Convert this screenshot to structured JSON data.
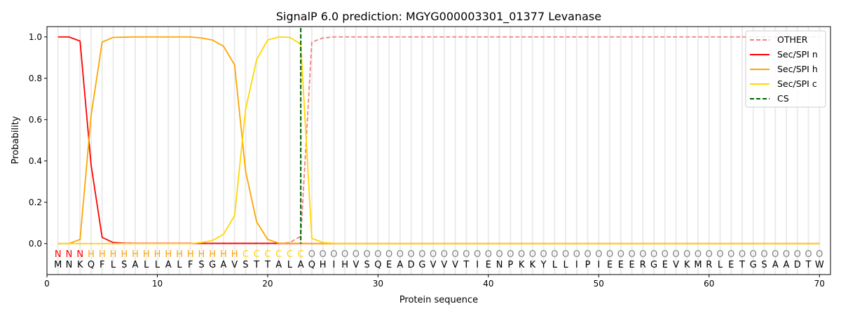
{
  "chart_data": {
    "type": "line",
    "title": "SignalP 6.0 prediction: MGYG000003301_01377 Levanase",
    "xlabel": "Protein sequence",
    "ylabel": "Probability",
    "xlim": [
      0,
      71
    ],
    "ylim": [
      -0.15,
      1.05
    ],
    "xticks": [
      0,
      10,
      20,
      30,
      40,
      50,
      60,
      70
    ],
    "yticks": [
      "0.0",
      "0.2",
      "0.4",
      "0.6",
      "0.8",
      "1.0"
    ],
    "grid": "vertical lines at each residue",
    "legend_position": "top-right",
    "sequence": "MNKQFLSALLALFSGAVSTTALAQHIHVSQEADGVVVTIENPKKYLLIPIEEERGEVKMRLETGSAADTW",
    "labels": "NNNHHHHHHHHHHHHHHCCCCCCOOOOOOOOOOOOOOOOOOOOOOOOOOOOOOOOOOOOOOOOOOOOOOO",
    "label_colors": {
      "N": "#ff0000",
      "H": "#ffa500",
      "C": "#ffd700",
      "O": "#808080"
    },
    "cleavage_site": 23,
    "series": [
      {
        "name": "OTHER",
        "color": "#f08080",
        "dash": true,
        "values": [
          0,
          0,
          0,
          0,
          0,
          0,
          0,
          0,
          0,
          0,
          0,
          0,
          0,
          0,
          0,
          0,
          0,
          0,
          0,
          0,
          0,
          0.005,
          0.035,
          0.975,
          0.995,
          1,
          1,
          1,
          1,
          1,
          1,
          1,
          1,
          1,
          1,
          1,
          1,
          1,
          1,
          1,
          1,
          1,
          1,
          1,
          1,
          1,
          1,
          1,
          1,
          1,
          1,
          1,
          1,
          1,
          1,
          1,
          1,
          1,
          1,
          1,
          1,
          1,
          1,
          1,
          1,
          1,
          1,
          1,
          1,
          1
        ]
      },
      {
        "name": "Sec/SPI n",
        "color": "#ff0000",
        "values": [
          1,
          1,
          0.98,
          0.38,
          0.03,
          0.005,
          0.002,
          0.001,
          0.001,
          0.001,
          0.001,
          0.001,
          0.001,
          0.001,
          0.001,
          0.001,
          0.001,
          0.001,
          0.001,
          0.001,
          0.001,
          0,
          0,
          0,
          0,
          0,
          0,
          0,
          0,
          0,
          0,
          0,
          0,
          0,
          0,
          0,
          0,
          0,
          0,
          0,
          0,
          0,
          0,
          0,
          0,
          0,
          0,
          0,
          0,
          0,
          0,
          0,
          0,
          0,
          0,
          0,
          0,
          0,
          0,
          0,
          0,
          0,
          0,
          0,
          0,
          0,
          0,
          0,
          0,
          0
        ]
      },
      {
        "name": "Sec/SPI h",
        "color": "#ffa500",
        "values": [
          0,
          0,
          0.02,
          0.62,
          0.975,
          0.998,
          0.999,
          1,
          1,
          1,
          1,
          1,
          1,
          0.995,
          0.985,
          0.955,
          0.865,
          0.35,
          0.105,
          0.02,
          0.002,
          0.001,
          0.001,
          0,
          0,
          0,
          0,
          0,
          0,
          0,
          0,
          0,
          0,
          0,
          0,
          0,
          0,
          0,
          0,
          0,
          0,
          0,
          0,
          0,
          0,
          0,
          0,
          0,
          0,
          0,
          0,
          0,
          0,
          0,
          0,
          0,
          0,
          0,
          0,
          0,
          0,
          0,
          0,
          0,
          0,
          0,
          0,
          0,
          0,
          0
        ]
      },
      {
        "name": "Sec/SPI c",
        "color": "#ffd700",
        "values": [
          0,
          0,
          0,
          0,
          0,
          0,
          0,
          0,
          0,
          0,
          0,
          0,
          0,
          0.005,
          0.015,
          0.045,
          0.135,
          0.65,
          0.89,
          0.985,
          1,
          0.998,
          0.965,
          0.025,
          0.005,
          0.001,
          0,
          0,
          0,
          0,
          0,
          0,
          0,
          0,
          0,
          0,
          0,
          0,
          0,
          0,
          0,
          0,
          0,
          0,
          0,
          0,
          0,
          0,
          0,
          0,
          0,
          0,
          0,
          0,
          0,
          0,
          0,
          0,
          0,
          0,
          0,
          0,
          0,
          0,
          0,
          0,
          0,
          0,
          0,
          0
        ]
      },
      {
        "name": "CS",
        "color": "#006400",
        "dash": true
      }
    ]
  }
}
